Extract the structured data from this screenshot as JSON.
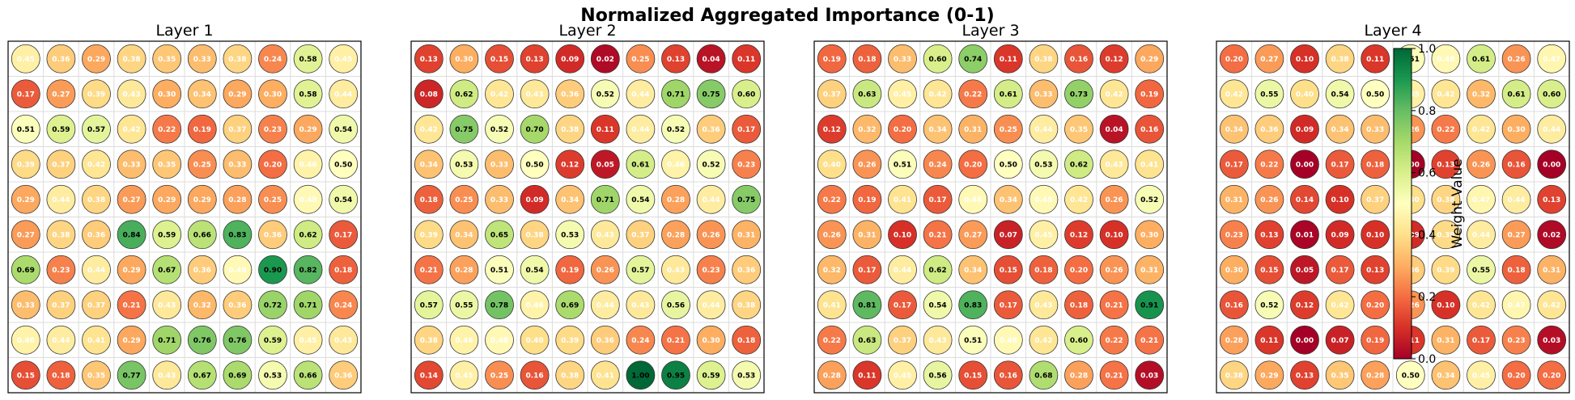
{
  "chart_data": {
    "type": "heatmap",
    "title": "Normalized Aggregated Importance (0-1)",
    "colorbar": {
      "label": "Weight Value",
      "range": [
        0.0,
        1.0
      ],
      "ticks": [
        0.0,
        0.2,
        0.4,
        0.6,
        0.8,
        1.0
      ],
      "tick_labels": [
        "0.0",
        "0.2",
        "0.4",
        "0.6",
        "0.8",
        "1.0"
      ],
      "colormap": "RdYlGn",
      "placement": "over layer 4 panel"
    },
    "layers": [
      {
        "name": "Layer 1",
        "values": [
          [
            0.45,
            0.36,
            0.29,
            0.38,
            0.35,
            0.33,
            0.38,
            0.24,
            0.58,
            0.45
          ],
          [
            0.17,
            0.27,
            0.39,
            0.43,
            0.3,
            0.34,
            0.29,
            0.3,
            0.58,
            0.44
          ],
          [
            0.51,
            0.59,
            0.57,
            0.42,
            0.22,
            0.19,
            0.37,
            0.23,
            0.29,
            0.54
          ],
          [
            0.39,
            0.37,
            0.42,
            0.33,
            0.35,
            0.25,
            0.33,
            0.2,
            0.46,
            0.5
          ],
          [
            0.29,
            0.44,
            0.38,
            0.27,
            0.29,
            0.29,
            0.28,
            0.25,
            0.48,
            0.54
          ],
          [
            0.27,
            0.38,
            0.36,
            0.84,
            0.59,
            0.66,
            0.83,
            0.36,
            0.62,
            0.17
          ],
          [
            0.69,
            0.23,
            0.44,
            0.29,
            0.67,
            0.36,
            0.48,
            0.9,
            0.82,
            0.18
          ],
          [
            0.33,
            0.37,
            0.37,
            0.21,
            0.43,
            0.32,
            0.36,
            0.72,
            0.71,
            0.24
          ],
          [
            0.46,
            0.44,
            0.41,
            0.29,
            0.71,
            0.76,
            0.76,
            0.59,
            0.45,
            0.43
          ],
          [
            0.15,
            0.18,
            0.35,
            0.77,
            0.43,
            0.67,
            0.69,
            0.53,
            0.66,
            0.36
          ]
        ]
      },
      {
        "name": "Layer 2",
        "values": [
          [
            0.13,
            0.3,
            0.15,
            0.13,
            0.09,
            0.02,
            0.25,
            0.13,
            0.04,
            0.11
          ],
          [
            0.08,
            0.62,
            0.42,
            0.43,
            0.36,
            0.52,
            0.44,
            0.71,
            0.75,
            0.6
          ],
          [
            0.42,
            0.75,
            0.52,
            0.7,
            0.38,
            0.11,
            0.44,
            0.52,
            0.36,
            0.17
          ],
          [
            0.34,
            0.53,
            0.33,
            0.5,
            0.12,
            0.05,
            0.61,
            0.46,
            0.52,
            0.23
          ],
          [
            0.18,
            0.25,
            0.33,
            0.09,
            0.34,
            0.71,
            0.54,
            0.28,
            0.44,
            0.75
          ],
          [
            0.39,
            0.34,
            0.65,
            0.38,
            0.53,
            0.43,
            0.37,
            0.28,
            0.26,
            0.31
          ],
          [
            0.21,
            0.28,
            0.51,
            0.54,
            0.19,
            0.26,
            0.57,
            0.43,
            0.23,
            0.36
          ],
          [
            0.57,
            0.55,
            0.78,
            0.46,
            0.69,
            0.44,
            0.43,
            0.56,
            0.44,
            0.38
          ],
          [
            0.38,
            0.46,
            0.48,
            0.4,
            0.39,
            0.36,
            0.24,
            0.21,
            0.3,
            0.18
          ],
          [
            0.14,
            0.45,
            0.25,
            0.16,
            0.38,
            0.41,
            1.0,
            0.95,
            0.59,
            0.53
          ]
        ]
      },
      {
        "name": "Layer 3",
        "values": [
          [
            0.19,
            0.18,
            0.33,
            0.6,
            0.74,
            0.11,
            0.38,
            0.16,
            0.12,
            0.29
          ],
          [
            0.37,
            0.63,
            0.45,
            0.42,
            0.22,
            0.61,
            0.33,
            0.73,
            0.42,
            0.19
          ],
          [
            0.12,
            0.32,
            0.2,
            0.34,
            0.31,
            0.25,
            0.44,
            0.35,
            0.04,
            0.16
          ],
          [
            0.4,
            0.26,
            0.51,
            0.24,
            0.2,
            0.5,
            0.53,
            0.62,
            0.43,
            0.41
          ],
          [
            0.22,
            0.19,
            0.41,
            0.17,
            0.48,
            0.34,
            0.48,
            0.42,
            0.26,
            0.52
          ],
          [
            0.26,
            0.31,
            0.1,
            0.21,
            0.27,
            0.07,
            0.45,
            0.12,
            0.1,
            0.3
          ],
          [
            0.32,
            0.17,
            0.44,
            0.62,
            0.34,
            0.15,
            0.18,
            0.2,
            0.26,
            0.31
          ],
          [
            0.41,
            0.81,
            0.17,
            0.54,
            0.83,
            0.17,
            0.43,
            0.18,
            0.21,
            0.91
          ],
          [
            0.22,
            0.63,
            0.37,
            0.43,
            0.51,
            0.48,
            0.42,
            0.6,
            0.22,
            0.21
          ],
          [
            0.28,
            0.11,
            0.45,
            0.56,
            0.15,
            0.16,
            0.68,
            0.28,
            0.21,
            0.03
          ]
        ]
      },
      {
        "name": "Layer 4",
        "values": [
          [
            0.2,
            0.27,
            0.1,
            0.38,
            0.11,
            0.51,
            0.48,
            0.61,
            0.26,
            0.47
          ],
          [
            0.42,
            0.55,
            0.4,
            0.54,
            0.5,
            0.45,
            0.42,
            0.32,
            0.61,
            0.6
          ],
          [
            0.34,
            0.36,
            0.09,
            0.34,
            0.33,
            0.26,
            0.22,
            0.42,
            0.3,
            0.44
          ],
          [
            0.17,
            0.22,
            0.0,
            0.17,
            0.18,
            0.0,
            0.13,
            0.26,
            0.16,
            0.0
          ],
          [
            0.31,
            0.26,
            0.14,
            0.1,
            0.37,
            0.4,
            0.38,
            0.47,
            0.44,
            0.13
          ],
          [
            0.23,
            0.13,
            0.01,
            0.09,
            0.1,
            0.09,
            0.39,
            0.44,
            0.27,
            0.02
          ],
          [
            0.3,
            0.15,
            0.05,
            0.17,
            0.13,
            0.36,
            0.39,
            0.55,
            0.18,
            0.31
          ],
          [
            0.16,
            0.52,
            0.12,
            0.42,
            0.2,
            0.26,
            0.1,
            0.42,
            0.47,
            0.42
          ],
          [
            0.28,
            0.11,
            0.0,
            0.07,
            0.19,
            0.11,
            0.31,
            0.17,
            0.23,
            0.03
          ],
          [
            0.38,
            0.29,
            0.13,
            0.35,
            0.28,
            0.5,
            0.34,
            0.45,
            0.2,
            0.2
          ]
        ]
      }
    ]
  }
}
